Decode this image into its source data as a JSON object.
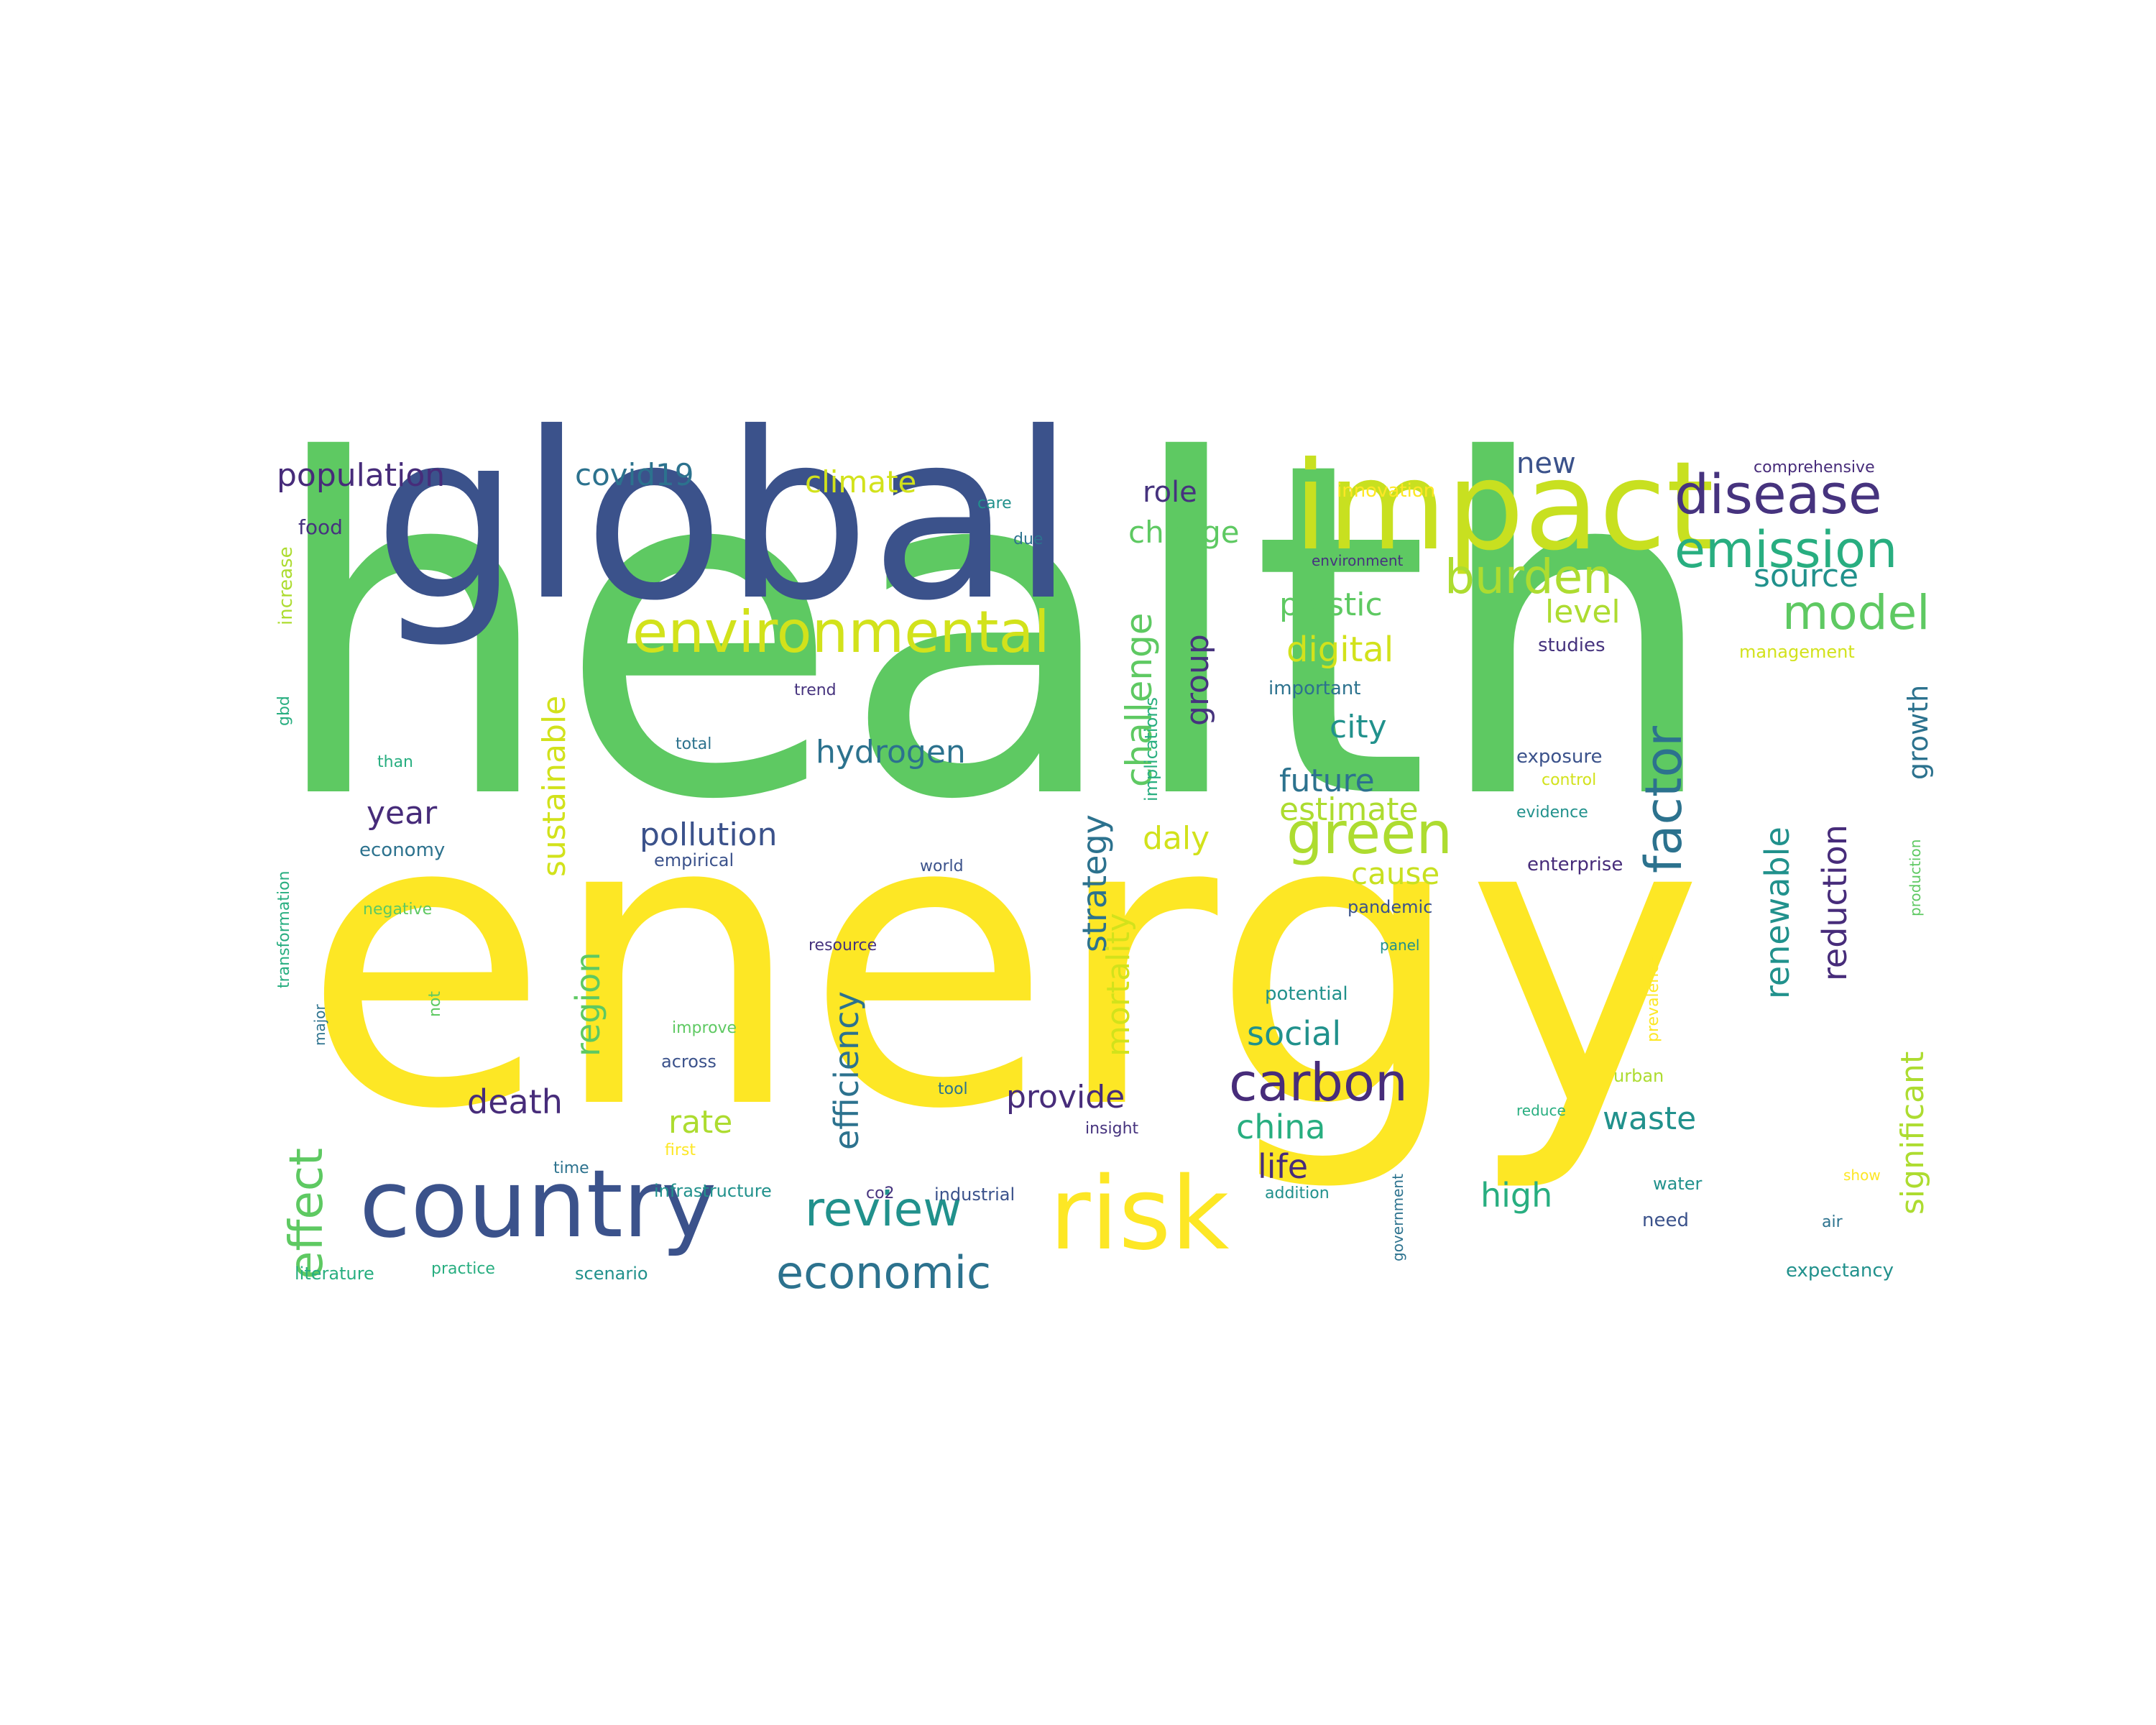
{
  "wordcloud": {
    "colors": {
      "dark_purple": "#472c7a",
      "purple": "#46337e",
      "blue": "#3b528b",
      "teal_blue": "#2c728e",
      "teal": "#21918c",
      "sea_green": "#28ae80",
      "green": "#5ec962",
      "lime": "#addc30",
      "yellow": "#fde725"
    },
    "words": [
      {
        "text": "health",
        "color": "#5ec962"
      },
      {
        "text": "energy",
        "color": "#fde725"
      },
      {
        "text": "global",
        "color": "#3b528b"
      },
      {
        "text": "impact",
        "color": "#c8e020"
      },
      {
        "text": "country",
        "color": "#3b528b"
      },
      {
        "text": "risk",
        "color": "#fde725"
      },
      {
        "text": "environmental",
        "color": "#d2e21b"
      },
      {
        "text": "disease",
        "color": "#46337e"
      },
      {
        "text": "emission",
        "color": "#28ae80"
      },
      {
        "text": "burden",
        "color": "#addc30"
      },
      {
        "text": "model",
        "color": "#5ec962"
      },
      {
        "text": "factor",
        "color": "#2c728e"
      },
      {
        "text": "green",
        "color": "#addc30"
      },
      {
        "text": "carbon",
        "color": "#472c7a"
      },
      {
        "text": "review",
        "color": "#21918c"
      },
      {
        "text": "economic",
        "color": "#2c728e"
      },
      {
        "text": "effect",
        "color": "#5ec962"
      },
      {
        "text": "population",
        "color": "#472c7a"
      },
      {
        "text": "covid19",
        "color": "#2c728e"
      },
      {
        "text": "climate",
        "color": "#d2e21b"
      },
      {
        "text": "role",
        "color": "#46337e"
      },
      {
        "text": "change",
        "color": "#5ec962"
      },
      {
        "text": "new",
        "color": "#3b528b"
      },
      {
        "text": "source",
        "color": "#21918c"
      },
      {
        "text": "plastic",
        "color": "#5ec962"
      },
      {
        "text": "level",
        "color": "#addc30"
      },
      {
        "text": "digital",
        "color": "#d2e21b"
      },
      {
        "text": "city",
        "color": "#21918c"
      },
      {
        "text": "future",
        "color": "#2c728e"
      },
      {
        "text": "estimate",
        "color": "#addc30"
      },
      {
        "text": "cause",
        "color": "#c8e020"
      },
      {
        "text": "hydrogen",
        "color": "#2c728e"
      },
      {
        "text": "year",
        "color": "#472c7a"
      },
      {
        "text": "pollution",
        "color": "#3b528b"
      },
      {
        "text": "daly",
        "color": "#d2e21b"
      },
      {
        "text": "social",
        "color": "#21918c"
      },
      {
        "text": "china",
        "color": "#28ae80"
      },
      {
        "text": "life",
        "color": "#472c7a"
      },
      {
        "text": "death",
        "color": "#472c7a"
      },
      {
        "text": "rate",
        "color": "#addc30"
      },
      {
        "text": "provide",
        "color": "#472c7a"
      },
      {
        "text": "waste",
        "color": "#21918c"
      },
      {
        "text": "high",
        "color": "#28ae80"
      },
      {
        "text": "group",
        "color": "#46337e"
      },
      {
        "text": "challenge",
        "color": "#5ec962"
      },
      {
        "text": "sustainable",
        "color": "#d2e21b"
      },
      {
        "text": "strategy",
        "color": "#2c728e"
      },
      {
        "text": "mortality",
        "color": "#d2e21b"
      },
      {
        "text": "efficiency",
        "color": "#2c728e"
      },
      {
        "text": "region",
        "color": "#5ec962"
      },
      {
        "text": "renewable",
        "color": "#21918c"
      },
      {
        "text": "reduction",
        "color": "#472c7a"
      },
      {
        "text": "growth",
        "color": "#2c728e"
      },
      {
        "text": "significant",
        "color": "#addc30"
      },
      {
        "text": "innovation",
        "color": "#fde725"
      },
      {
        "text": "comprehensive",
        "color": "#472c7a"
      },
      {
        "text": "care",
        "color": "#21918c"
      },
      {
        "text": "due",
        "color": "#2c728e"
      },
      {
        "text": "food",
        "color": "#46337e"
      },
      {
        "text": "increase",
        "color": "#addc30"
      },
      {
        "text": "gbd",
        "color": "#28ae80"
      },
      {
        "text": "environment",
        "color": "#46337e"
      },
      {
        "text": "studies",
        "color": "#46337e"
      },
      {
        "text": "management",
        "color": "#d2e21b"
      },
      {
        "text": "important",
        "color": "#2c728e"
      },
      {
        "text": "trend",
        "color": "#46337e"
      },
      {
        "text": "implications",
        "color": "#28ae80"
      },
      {
        "text": "total",
        "color": "#2c728e"
      },
      {
        "text": "than",
        "color": "#28ae80"
      },
      {
        "text": "exposure",
        "color": "#3b528b"
      },
      {
        "text": "control",
        "color": "#d2e21b"
      },
      {
        "text": "evidence",
        "color": "#21918c"
      },
      {
        "text": "enterprise",
        "color": "#472c7a"
      },
      {
        "text": "economy",
        "color": "#2c728e"
      },
      {
        "text": "empirical",
        "color": "#3b528b"
      },
      {
        "text": "world",
        "color": "#3b528b"
      },
      {
        "text": "transformation",
        "color": "#28ae80"
      },
      {
        "text": "negative",
        "color": "#5ec962"
      },
      {
        "text": "pandemic",
        "color": "#3b528b"
      },
      {
        "text": "panel",
        "color": "#21918c"
      },
      {
        "text": "resource",
        "color": "#46337e"
      },
      {
        "text": "production",
        "color": "#5ec962"
      },
      {
        "text": "potential",
        "color": "#21918c"
      },
      {
        "text": "prevalence",
        "color": "#fde725"
      },
      {
        "text": "major",
        "color": "#2c728e"
      },
      {
        "text": "not",
        "color": "#5ec962"
      },
      {
        "text": "improve",
        "color": "#5ec962"
      },
      {
        "text": "across",
        "color": "#3b528b"
      },
      {
        "text": "tool",
        "color": "#2c728e"
      },
      {
        "text": "insight",
        "color": "#46337e"
      },
      {
        "text": "urban",
        "color": "#addc30"
      },
      {
        "text": "reduce",
        "color": "#28ae80"
      },
      {
        "text": "first",
        "color": "#fde725"
      },
      {
        "text": "time",
        "color": "#2c728e"
      },
      {
        "text": "addition",
        "color": "#21918c"
      },
      {
        "text": "government",
        "color": "#2c728e"
      },
      {
        "text": "infrastructure",
        "color": "#21918c"
      },
      {
        "text": "co2",
        "color": "#46337e"
      },
      {
        "text": "industrial",
        "color": "#3b528b"
      },
      {
        "text": "water",
        "color": "#21918c"
      },
      {
        "text": "show",
        "color": "#fde725"
      },
      {
        "text": "need",
        "color": "#3b528b"
      },
      {
        "text": "air",
        "color": "#2c728e"
      },
      {
        "text": "literature",
        "color": "#28ae80"
      },
      {
        "text": "practice",
        "color": "#28ae80"
      },
      {
        "text": "scenario",
        "color": "#21918c"
      },
      {
        "text": "expectancy",
        "color": "#21918c"
      }
    ]
  }
}
